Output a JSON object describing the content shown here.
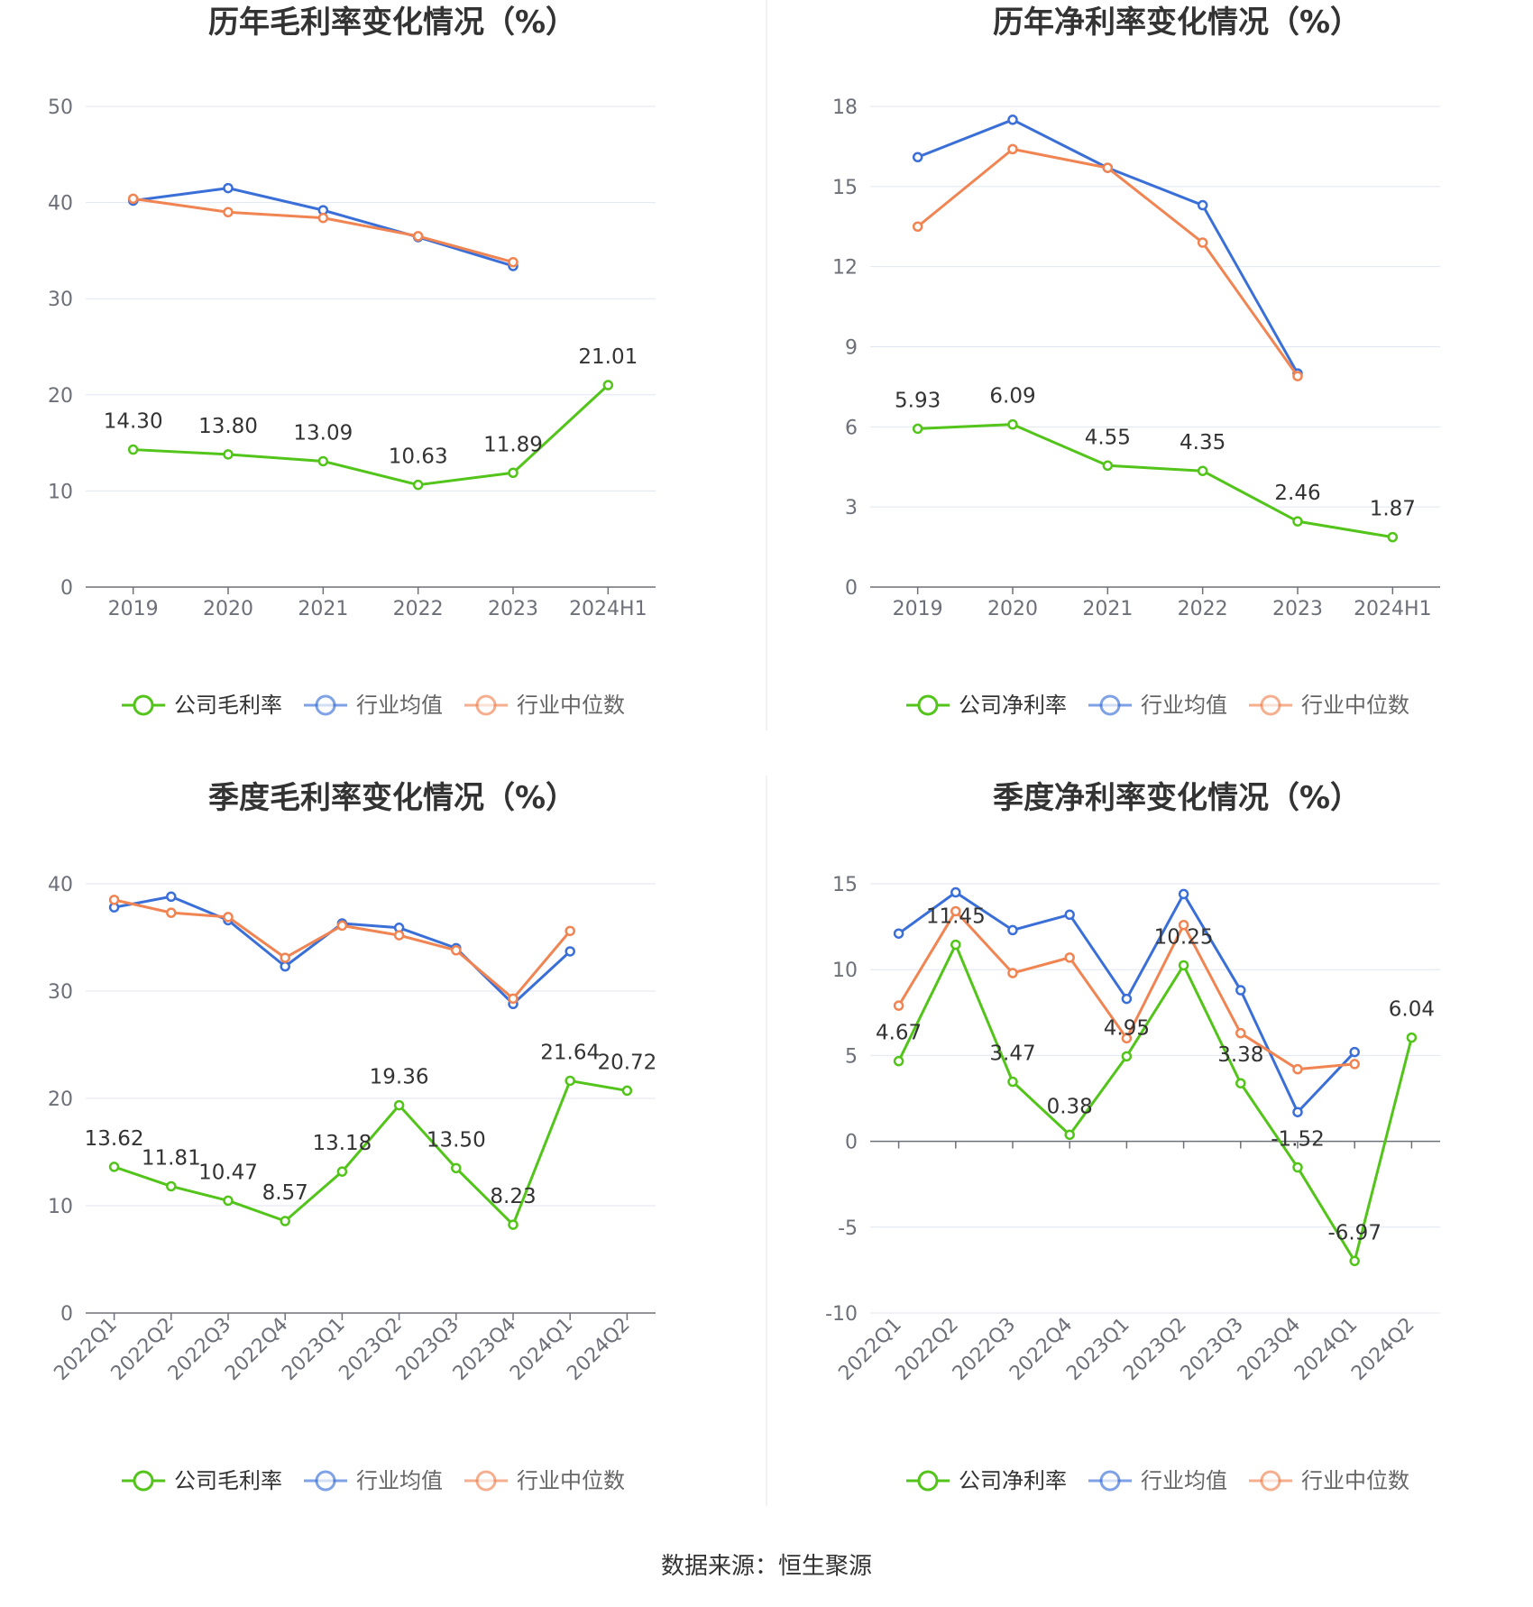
{
  "colors": {
    "company": "#52c41a",
    "avg": "#3b6fd8",
    "median": "#f08452",
    "grid": "#e0e6f1",
    "axis": "#6e7079"
  },
  "source_text": "数据来源：恒生聚源",
  "chart_data": [
    {
      "type": "line",
      "title": "历年毛利率变化情况（%）",
      "categories": [
        "2019",
        "2020",
        "2021",
        "2022",
        "2023",
        "2024H1"
      ],
      "ylim": [
        0,
        50
      ],
      "yticks": [
        0,
        10,
        20,
        30,
        40,
        50
      ],
      "grid": true,
      "legend_position": "bottom",
      "series": [
        {
          "name": "公司毛利率",
          "key": "company",
          "labels": true,
          "values": [
            14.3,
            13.8,
            13.09,
            10.63,
            11.89,
            21.01
          ],
          "value_labels": [
            "14.30",
            "13.80",
            "13.09",
            "10.63",
            "11.89",
            "21.01"
          ]
        },
        {
          "name": "行业均值",
          "key": "avg",
          "labels": false,
          "values": [
            40.2,
            41.5,
            39.2,
            36.4,
            33.4,
            null
          ]
        },
        {
          "name": "行业中位数",
          "key": "median",
          "labels": false,
          "values": [
            40.4,
            39.0,
            38.4,
            36.5,
            33.8,
            null
          ]
        }
      ]
    },
    {
      "type": "line",
      "title": "历年净利率变化情况（%）",
      "categories": [
        "2019",
        "2020",
        "2021",
        "2022",
        "2023",
        "2024H1"
      ],
      "ylim": [
        0,
        18
      ],
      "yticks": [
        0,
        3,
        6,
        9,
        12,
        15,
        18
      ],
      "grid": true,
      "legend_position": "bottom",
      "series": [
        {
          "name": "公司净利率",
          "key": "company",
          "labels": true,
          "values": [
            5.93,
            6.09,
            4.55,
            4.35,
            2.46,
            1.87
          ],
          "value_labels": [
            "5.93",
            "6.09",
            "4.55",
            "4.35",
            "2.46",
            "1.87"
          ]
        },
        {
          "name": "行业均值",
          "key": "avg",
          "labels": false,
          "values": [
            16.1,
            17.5,
            15.7,
            14.3,
            8.0,
            null
          ]
        },
        {
          "name": "行业中位数",
          "key": "median",
          "labels": false,
          "values": [
            13.5,
            16.4,
            15.7,
            12.9,
            7.9,
            null
          ]
        }
      ]
    },
    {
      "type": "line",
      "title": "季度毛利率变化情况（%）",
      "categories": [
        "2022Q1",
        "2022Q2",
        "2022Q3",
        "2022Q4",
        "2023Q1",
        "2023Q2",
        "2023Q3",
        "2023Q4",
        "2024Q1",
        "2024Q2"
      ],
      "ylim": [
        0,
        40
      ],
      "yticks": [
        0,
        10,
        20,
        30,
        40
      ],
      "grid": true,
      "legend_position": "bottom",
      "series": [
        {
          "name": "公司毛利率",
          "key": "company",
          "labels": true,
          "values": [
            13.62,
            11.81,
            10.47,
            8.57,
            13.18,
            19.36,
            13.5,
            8.23,
            21.64,
            20.72
          ],
          "value_labels": [
            "13.62",
            "11.81",
            "10.47",
            "8.57",
            "13.18",
            "19.36",
            "13.50",
            "8.23",
            "21.64",
            "20.72"
          ]
        },
        {
          "name": "行业均值",
          "key": "avg",
          "labels": false,
          "values": [
            37.8,
            38.8,
            36.6,
            32.3,
            36.3,
            35.9,
            34.0,
            28.8,
            33.7,
            null
          ]
        },
        {
          "name": "行业中位数",
          "key": "median",
          "labels": false,
          "values": [
            38.5,
            37.3,
            36.9,
            33.1,
            36.1,
            35.2,
            33.8,
            29.3,
            35.6,
            null
          ]
        }
      ]
    },
    {
      "type": "line",
      "title": "季度净利率变化情况（%）",
      "categories": [
        "2022Q1",
        "2022Q2",
        "2022Q3",
        "2022Q4",
        "2023Q1",
        "2023Q2",
        "2023Q3",
        "2023Q4",
        "2024Q1",
        "2024Q2"
      ],
      "ylim": [
        -10,
        15
      ],
      "yticks": [
        -10,
        -5,
        0,
        5,
        10,
        15
      ],
      "grid": true,
      "legend_position": "bottom",
      "series": [
        {
          "name": "公司净利率",
          "key": "company",
          "labels": true,
          "values": [
            4.67,
            11.45,
            3.47,
            0.38,
            4.95,
            10.25,
            3.38,
            -1.52,
            -6.97,
            6.04
          ],
          "value_labels": [
            "4.67",
            "11.45",
            "3.47",
            "0.38",
            "4.95",
            "10.25",
            "3.38",
            "-1.52",
            "-6.97",
            "6.04"
          ]
        },
        {
          "name": "行业均值",
          "key": "avg",
          "labels": false,
          "values": [
            12.1,
            14.5,
            12.3,
            13.2,
            8.3,
            14.4,
            8.8,
            1.7,
            5.2,
            null
          ]
        },
        {
          "name": "行业中位数",
          "key": "median",
          "labels": false,
          "values": [
            7.9,
            13.4,
            9.8,
            10.7,
            6.0,
            12.6,
            6.3,
            4.2,
            4.5,
            null
          ]
        }
      ]
    }
  ]
}
